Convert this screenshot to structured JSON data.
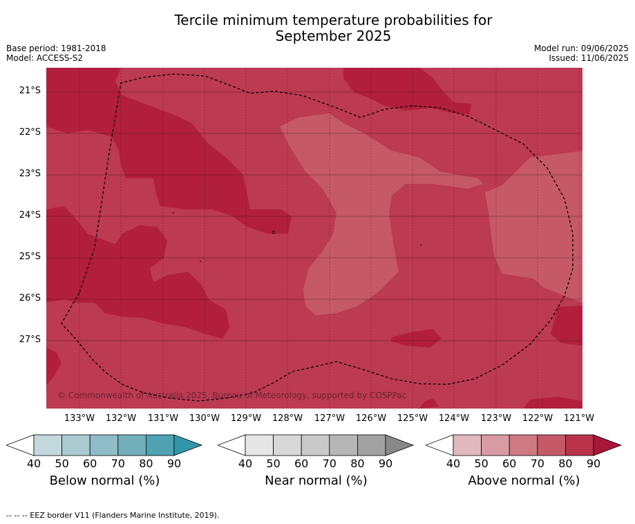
{
  "title_line1": "Tercile minimum temperature probabilities for",
  "title_line2": "September 2025",
  "base_period": "Base period: 1981-2018",
  "model": "Model: ACCESS-S2",
  "model_run": "Model run: 09/06/2025",
  "issued": "Issued: 11/06/2025",
  "copyright": "© Commonwealth of Australia 2025, Bureau of Meteorology, supported by COSPPac",
  "footer": "--  --  -- EEZ border V11 (Flanders Marine Institute, 2019).",
  "lat_labels": [
    "21°S",
    "22°S",
    "23°S",
    "24°S",
    "25°S",
    "26°S",
    "27°S"
  ],
  "lon_labels": [
    "133°W",
    "132°W",
    "131°W",
    "130°W",
    "129°W",
    "128°W",
    "127°W",
    "126°W",
    "125°W",
    "124°W",
    "123°W",
    "122°W",
    "121°W"
  ],
  "colorbars": [
    {
      "title": "Below normal (%)",
      "ticks": [
        "40",
        "50",
        "60",
        "70",
        "80",
        "90"
      ],
      "colors": [
        "#c3d8dd",
        "#a9cad1",
        "#8fbcc6",
        "#73aebb",
        "#4ea2b2",
        "#3396aa"
      ]
    },
    {
      "title": "Near normal (%)",
      "ticks": [
        "40",
        "50",
        "60",
        "70",
        "80",
        "90"
      ],
      "colors": [
        "#e6e6e6",
        "#d8d8d8",
        "#c9c9c9",
        "#b6b6b6",
        "#a2a2a2",
        "#888888"
      ]
    },
    {
      "title": "Above normal (%)",
      "ticks": [
        "40",
        "50",
        "60",
        "70",
        "80",
        "90"
      ],
      "colors": [
        "#e2b9c0",
        "#d89aa3",
        "#cf7983",
        "#c55967",
        "#b9334a",
        "#a8173a"
      ]
    }
  ],
  "map_colors": {
    "prob_60_70": "#c55967",
    "prob_70_80": "#bc3a52",
    "prob_80_90": "#b21f3d"
  }
}
